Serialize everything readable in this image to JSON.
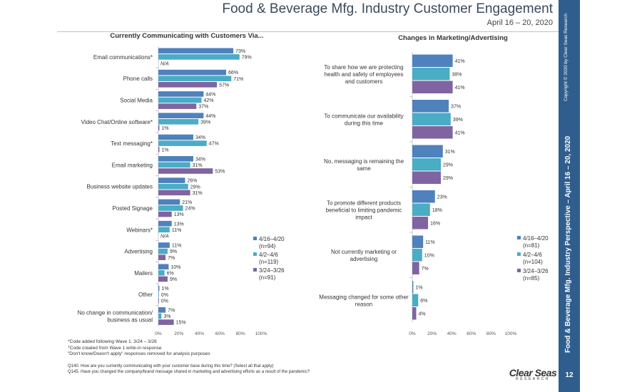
{
  "header": {
    "title": "Food & Beverage Mfg. Industry Customer Engagement",
    "date": "April 16 – 20, 2020"
  },
  "sidebar": {
    "copyright": "Copyright © 2020 by Clear Seas Research",
    "main_text": "Food & Beverage Mfg. Industry Perspective – April 16 – 20, 2020",
    "page_number": "12"
  },
  "colors": {
    "wave_apr16": "#4f81bd",
    "wave_apr2": "#4bacc6",
    "wave_mar24": "#8064a2",
    "sidebar": "#2f5e8e"
  },
  "chart_data": [
    {
      "type": "bar",
      "orientation": "horizontal",
      "title": "Currently Communicating with Customers Via...",
      "categories": [
        "Email communications*",
        "Phone calls",
        "Social Media",
        "Video Chat/Online software*",
        "Text messaging*",
        "Email marketing",
        "Business website updates",
        "Posted Signage",
        "Webinars*",
        "Advertising",
        "Mailers",
        "Other",
        "No change in communication/ business as usual"
      ],
      "series": [
        {
          "name": "4/16–4/20",
          "n": "(n=94)",
          "values": [
            73,
            66,
            44,
            44,
            34,
            34,
            26,
            21,
            13,
            11,
            10,
            1,
            7
          ]
        },
        {
          "name": "4/2–4/6",
          "n": "(n=119)",
          "values": [
            79,
            71,
            42,
            39,
            47,
            31,
            29,
            24,
            11,
            9,
            6,
            0,
            3
          ]
        },
        {
          "name": "3/24–3/26",
          "n": "(n=91)",
          "values": [
            null,
            57,
            37,
            1,
            1,
            53,
            31,
            13,
            null,
            7,
            9,
            0,
            15
          ]
        }
      ],
      "na_label": "N/A",
      "xlim": [
        0,
        100
      ],
      "xticks": [
        "0%",
        "20%",
        "40%",
        "60%",
        "80%",
        "100%"
      ],
      "legend_position": "right"
    },
    {
      "type": "bar",
      "orientation": "horizontal",
      "title": "Changes in Marketing/Advertising",
      "categories": [
        "To share how we are protecting health and safety of employees and customers",
        "To communicate our availability during this time",
        "No, messaging is remaining the same",
        "To promote different products beneficial to limiting pandemic impact",
        "Not currently marketing or advertising",
        "Messaging changed for some other reason"
      ],
      "series": [
        {
          "name": "4/16–4/20",
          "n": "(n=81)",
          "values": [
            41,
            37,
            31,
            23,
            11,
            1
          ]
        },
        {
          "name": "4/2–4/6",
          "n": "(n=104)",
          "values": [
            38,
            39,
            29,
            18,
            10,
            6
          ]
        },
        {
          "name": "3/24–3/26",
          "n": "(n=85)",
          "values": [
            41,
            41,
            29,
            16,
            7,
            4
          ]
        }
      ],
      "xlim": [
        0,
        100
      ],
      "xticks": [
        "0%",
        "20%",
        "40%",
        "60%",
        "80%",
        "100%"
      ],
      "legend_position": "right"
    }
  ],
  "footnotes": [
    "*Code added following Wave 1: 3/24 – 3/26",
    "ᵀCode created from Wave 1 write-in response",
    "\"Don't know/Doesn't apply\" responses removed for analysis purposes"
  ],
  "questions": [
    "Q140.  How are you currently communicating with your customer base during this time?  (Select all that apply)",
    "Q145.  Have you changed the company/brand message shared in marketing and advertising efforts as a result of the pandemic?"
  ],
  "logo": {
    "main": "Clear Seas",
    "sub": "RESEARCH"
  }
}
